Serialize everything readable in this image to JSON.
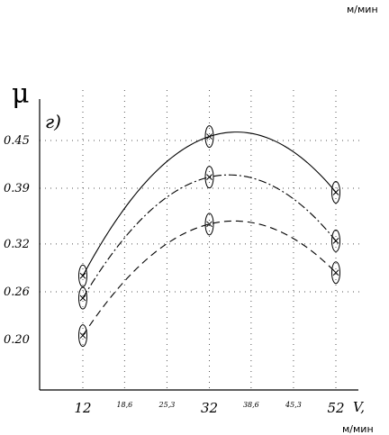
{
  "chart_data": {
    "type": "line",
    "top_unit": "м/мин",
    "ylabel": "μ",
    "panel_label": "г)",
    "xlabel": "V,",
    "xunit": "м/мин",
    "xlim": [
      4,
      60
    ],
    "ylim": [
      0.13,
      0.52
    ],
    "x_ticks": [
      "12",
      "18,6",
      "25,3",
      "32",
      "38,6",
      "45,3",
      "52"
    ],
    "x_tick_values": [
      12,
      18.6,
      25.3,
      32,
      38.6,
      45.3,
      52
    ],
    "x_tick_major": [
      true,
      false,
      false,
      true,
      false,
      false,
      true
    ],
    "y_ticks": [
      "0.45",
      "0.39",
      "0.32",
      "0.26",
      "0.20"
    ],
    "y_tick_values": [
      0.45,
      0.39,
      0.32,
      0.26,
      0.2
    ],
    "y_gridline_values": [
      0.45,
      0.39,
      0.32,
      0.26
    ],
    "grid": "dotted",
    "series": [
      {
        "style": "solid",
        "x": [
          12,
          32,
          52
        ],
        "y": [
          0.28,
          0.455,
          0.385
        ]
      },
      {
        "style": "dash-dot",
        "x": [
          12,
          32,
          52
        ],
        "y": [
          0.252,
          0.404,
          0.324
        ]
      },
      {
        "style": "dashed",
        "x": [
          12,
          32,
          52
        ],
        "y": [
          0.205,
          0.345,
          0.284
        ]
      }
    ]
  }
}
